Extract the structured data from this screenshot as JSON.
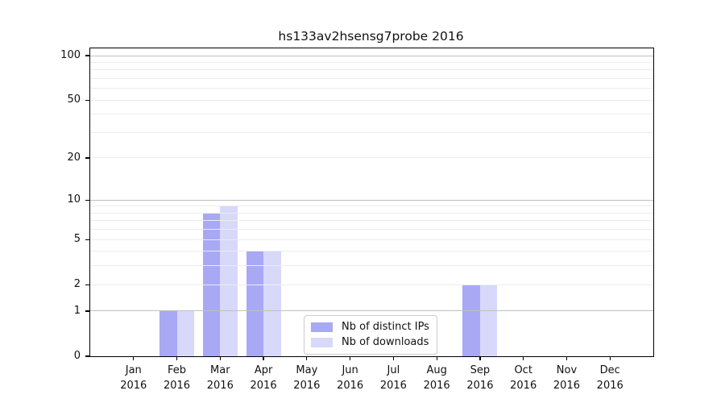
{
  "chart_data": {
    "type": "bar",
    "title": "hs133av2hsensg7probe 2016",
    "categories": [
      "Jan",
      "Feb",
      "Mar",
      "Apr",
      "May",
      "Jun",
      "Jul",
      "Aug",
      "Sep",
      "Oct",
      "Nov",
      "Dec"
    ],
    "category_year": "2016",
    "series": [
      {
        "name": "Nb of distinct IPs",
        "color": "#a8a8f5",
        "values": [
          0,
          1,
          8,
          4,
          0,
          0,
          0,
          0,
          2,
          0,
          0,
          0
        ]
      },
      {
        "name": "Nb of downloads",
        "color": "#d8d8fb",
        "values": [
          0,
          1,
          9,
          4,
          0,
          0,
          0,
          0,
          2,
          0,
          0,
          0
        ]
      }
    ],
    "y_axis": {
      "tick_values": [
        0,
        1,
        2,
        5,
        10,
        20,
        50,
        100
      ],
      "tick_labels": [
        "0",
        "1",
        "2",
        "5",
        "10",
        "20",
        "50",
        "100"
      ],
      "scale": "log(1+x)",
      "range": [
        0,
        115
      ]
    },
    "grid": {
      "major_values": [
        1,
        10,
        100
      ],
      "minor_values": [
        2,
        3,
        4,
        5,
        6,
        7,
        8,
        9,
        20,
        30,
        40,
        50,
        60,
        70,
        80,
        90
      ],
      "major_color": "#c0c0c0",
      "minor_color": "#ececec"
    },
    "legend": {
      "position": "bottom-center"
    },
    "colors": {
      "background": "#ffffff",
      "axis": "#000000",
      "text": "#111111"
    }
  }
}
